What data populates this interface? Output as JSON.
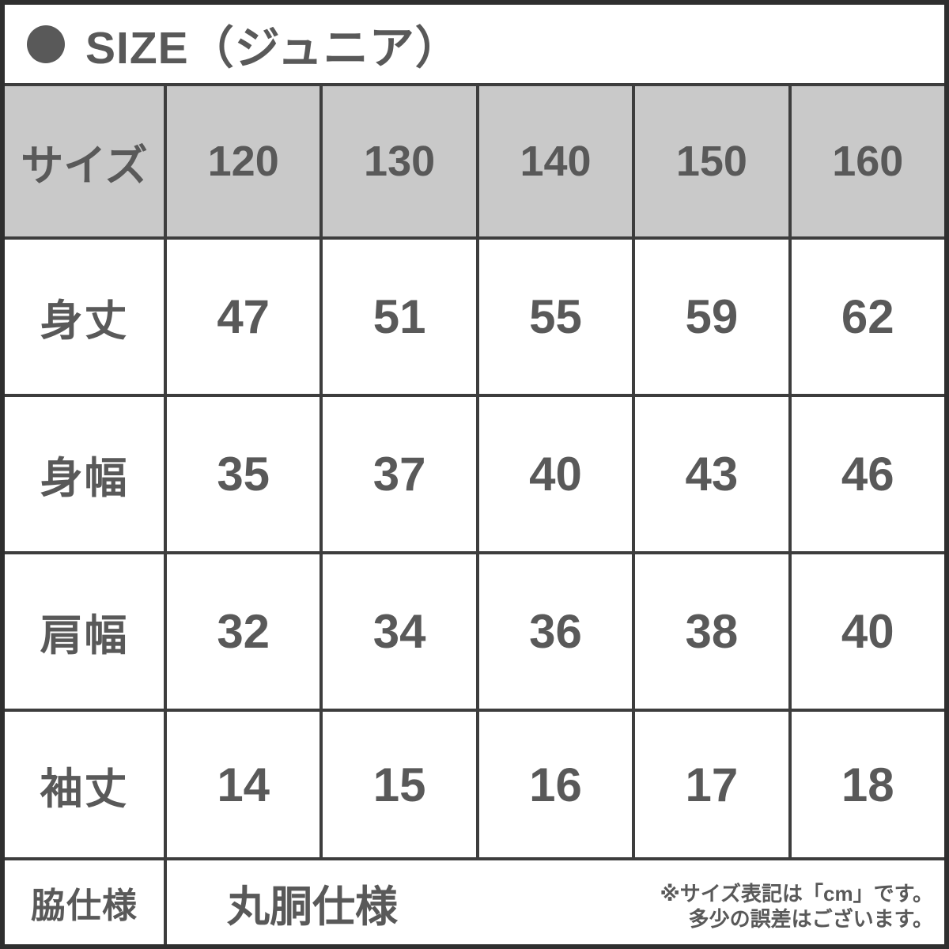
{
  "header": {
    "bullet_icon": "filled-circle",
    "title": "SIZE（ジュニア）"
  },
  "chart_data": {
    "type": "table",
    "title": "SIZE（ジュニア）",
    "columns": [
      "サイズ",
      "120",
      "130",
      "140",
      "150",
      "160"
    ],
    "rows": [
      [
        "身丈",
        47,
        51,
        55,
        59,
        62
      ],
      [
        "身幅",
        35,
        37,
        40,
        43,
        46
      ],
      [
        "肩幅",
        32,
        34,
        36,
        38,
        40
      ],
      [
        "袖丈",
        14,
        15,
        16,
        17,
        18
      ],
      [
        "脇仕様",
        "丸胴仕様"
      ]
    ],
    "unit": "cm",
    "notes": [
      "※サイズ表記は「cm」です。",
      "多少の誤差はございます。"
    ],
    "layout": {
      "header_fill": "gray",
      "grid": "on"
    }
  },
  "colors": {
    "header_bg": "#c9c9c9",
    "text": "#595959",
    "border": "#3d3d3d",
    "border_outer": "#2f2f2f"
  }
}
